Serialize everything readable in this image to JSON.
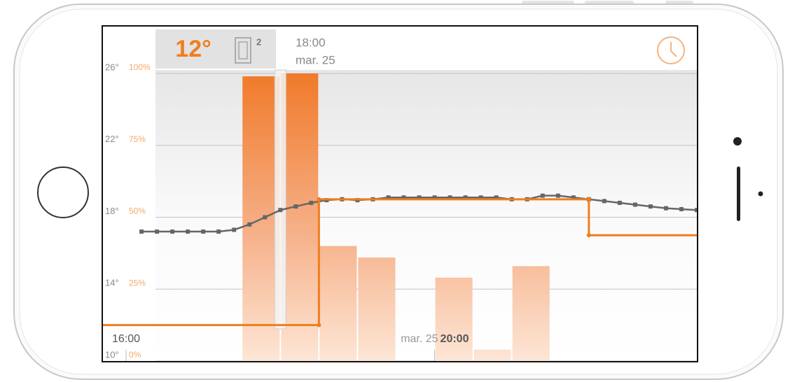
{
  "chart_data": {
    "type": "line",
    "cursor_time": "18:00",
    "cursor_date": "mar. 25",
    "cursor": 18,
    "badge_setpoint": "12°",
    "badge_windows": "2",
    "xlim": [
      15.7,
      23.4
    ],
    "xticks": [
      {
        "value": 16,
        "label": "16:00"
      },
      {
        "value": 20,
        "label": "20:00"
      }
    ],
    "date_label": "mar. 25",
    "ylim": [
      10,
      26
    ],
    "yticks": [
      {
        "value": 10,
        "label": "10°"
      },
      {
        "value": 14,
        "label": "14°"
      },
      {
        "value": 18,
        "label": "18°"
      },
      {
        "value": 22,
        "label": "22°"
      },
      {
        "value": 26,
        "label": "26°"
      }
    ],
    "y2lim": [
      0,
      100
    ],
    "y2ticks": [
      {
        "value": 0,
        "label": "0%"
      },
      {
        "value": 25,
        "label": "25%"
      },
      {
        "value": 50,
        "label": "50%"
      },
      {
        "value": 75,
        "label": "75%"
      },
      {
        "value": 100,
        "label": "100%"
      }
    ],
    "grid": true,
    "bars": {
      "axis": "y2",
      "color": "#f07a2a",
      "bins": [
        17.5,
        18,
        18.5,
        19,
        19.5,
        20,
        20.5,
        21,
        21.5
      ],
      "values": [
        99,
        100,
        40,
        36,
        0,
        29,
        4,
        33
      ]
    },
    "series": [
      {
        "color": "#666666",
        "x": [
          16.2,
          16.4,
          16.6,
          16.8,
          17.0,
          17.2,
          17.4,
          17.6,
          17.8,
          18.0,
          18.2,
          18.4,
          18.6,
          18.8,
          19.0,
          19.2,
          19.4,
          19.6,
          19.8,
          20.0,
          20.2,
          20.4,
          20.6,
          20.8,
          21.0,
          21.2,
          21.4,
          21.6,
          21.8,
          22.0,
          22.2,
          22.4,
          22.6,
          22.8,
          23.0,
          23.2,
          23.4
        ],
        "values": [
          17.2,
          17.2,
          17.2,
          17.2,
          17.2,
          17.2,
          17.3,
          17.6,
          18.0,
          18.4,
          18.6,
          18.8,
          18.95,
          19.0,
          18.95,
          19.0,
          19.1,
          19.1,
          19.1,
          19.1,
          19.1,
          19.1,
          19.1,
          19.1,
          19.0,
          19.0,
          19.2,
          19.2,
          19.1,
          19.0,
          18.9,
          18.8,
          18.7,
          18.6,
          18.5,
          18.45,
          18.4
        ]
      },
      {
        "color": "#f07d1e",
        "step": true,
        "x": [
          15.7,
          18.5,
          18.5,
          22.0,
          22.0,
          23.4
        ],
        "values": [
          12,
          12,
          19,
          19,
          17,
          17
        ]
      }
    ]
  }
}
